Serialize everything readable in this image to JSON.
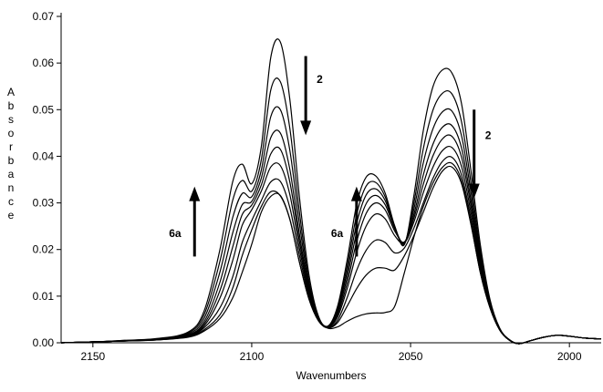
{
  "chart_data": {
    "type": "line",
    "title": "",
    "xlabel": "Wavenumbers",
    "ylabel": "Absorbance",
    "xlim": [
      2160,
      1990
    ],
    "ylim": [
      0.0,
      0.07
    ],
    "x_reversed": true,
    "grid": false,
    "legend": "none",
    "x_ticks": [
      2150,
      2100,
      2050,
      2000
    ],
    "x_tick_labels": [
      "2150",
      "2100",
      "2050",
      "2000"
    ],
    "y_ticks": [
      0.0,
      0.01,
      0.02,
      0.03,
      0.04,
      0.05,
      0.06,
      0.07
    ],
    "y_tick_labels": [
      "0.00",
      "0.01",
      "0.02",
      "0.03",
      "0.04",
      "0.05",
      "0.06",
      "0.07"
    ],
    "x": [
      2160,
      2150,
      2140,
      2130,
      2120,
      2115,
      2110,
      2106,
      2103,
      2100,
      2097,
      2094,
      2091,
      2088,
      2085,
      2082,
      2079,
      2076,
      2073,
      2070,
      2067,
      2064,
      2061,
      2058,
      2055,
      2052,
      2049,
      2046,
      2043,
      2040,
      2037,
      2034,
      2031,
      2028,
      2025,
      2022,
      2019,
      2016,
      2012,
      2008,
      2004,
      2000,
      1995,
      1990
    ],
    "series": [
      {
        "values": [
          0.0,
          0.0002,
          0.0004,
          0.0006,
          0.0012,
          0.0025,
          0.0052,
          0.0096,
          0.0151,
          0.0211,
          0.028,
          0.0314,
          0.0316,
          0.0265,
          0.0173,
          0.0094,
          0.0047,
          0.0031,
          0.0034,
          0.0046,
          0.0056,
          0.0062,
          0.0064,
          0.0065,
          0.0078,
          0.0149,
          0.0225,
          0.0292,
          0.0342,
          0.0376,
          0.0385,
          0.0349,
          0.0257,
          0.0149,
          0.0075,
          0.0028,
          0.0006,
          -0.0002,
          0.0005,
          0.0012,
          0.0016,
          0.0014,
          0.001,
          0.0008
        ]
      },
      {
        "values": [
          0.0,
          0.0002,
          0.0004,
          0.0006,
          0.0013,
          0.0028,
          0.006,
          0.0117,
          0.0187,
          0.0242,
          0.0292,
          0.0324,
          0.0315,
          0.0265,
          0.0173,
          0.0095,
          0.0048,
          0.0032,
          0.0043,
          0.0078,
          0.0116,
          0.0145,
          0.016,
          0.016,
          0.0156,
          0.0186,
          0.0229,
          0.028,
          0.0331,
          0.0368,
          0.0377,
          0.0342,
          0.0254,
          0.0149,
          0.0075,
          0.0028,
          0.0006,
          -0.0002,
          0.0005,
          0.0012,
          0.0016,
          0.0014,
          0.001,
          0.0008
        ]
      },
      {
        "values": [
          0.0,
          0.0002,
          0.0004,
          0.0006,
          0.0014,
          0.0032,
          0.0075,
          0.0141,
          0.0215,
          0.0262,
          0.0305,
          0.0345,
          0.0346,
          0.029,
          0.0188,
          0.01,
          0.0048,
          0.0032,
          0.0048,
          0.0096,
          0.0155,
          0.0198,
          0.022,
          0.0215,
          0.0193,
          0.0203,
          0.0245,
          0.03,
          0.0352,
          0.0389,
          0.0398,
          0.0361,
          0.0267,
          0.0156,
          0.0077,
          0.0028,
          0.0006,
          -0.0002,
          0.0005,
          0.0012,
          0.0016,
          0.0014,
          0.001,
          0.0008
        ]
      },
      {
        "values": [
          0.0,
          0.0002,
          0.0004,
          0.0007,
          0.0015,
          0.0036,
          0.0096,
          0.0176,
          0.0252,
          0.0285,
          0.0325,
          0.0377,
          0.038,
          0.0318,
          0.0203,
          0.0106,
          0.0049,
          0.0033,
          0.0055,
          0.0115,
          0.0193,
          0.025,
          0.0276,
          0.0266,
          0.023,
          0.0214,
          0.0258,
          0.0322,
          0.0376,
          0.0412,
          0.0419,
          0.0379,
          0.028,
          0.0163,
          0.0079,
          0.0029,
          0.0006,
          -0.0002,
          0.0005,
          0.0012,
          0.0016,
          0.0014,
          0.001,
          0.0008
        ]
      },
      {
        "values": [
          0.0,
          0.0002,
          0.0004,
          0.0007,
          0.0016,
          0.004,
          0.0112,
          0.0205,
          0.0275,
          0.0295,
          0.0338,
          0.0405,
          0.0415,
          0.0345,
          0.0218,
          0.0111,
          0.005,
          0.0033,
          0.006,
          0.0127,
          0.0216,
          0.0277,
          0.03,
          0.0285,
          0.024,
          0.0216,
          0.0266,
          0.034,
          0.04,
          0.0437,
          0.0443,
          0.0399,
          0.0294,
          0.017,
          0.0081,
          0.0029,
          0.0006,
          -0.0002,
          0.0005,
          0.0012,
          0.0016,
          0.0014,
          0.001,
          0.0008
        ]
      },
      {
        "values": [
          0.0,
          0.0002,
          0.0004,
          0.0007,
          0.0017,
          0.0045,
          0.013,
          0.0235,
          0.0296,
          0.0303,
          0.0353,
          0.044,
          0.045,
          0.0372,
          0.0233,
          0.0117,
          0.0051,
          0.0034,
          0.0065,
          0.0139,
          0.0236,
          0.0298,
          0.0316,
          0.0296,
          0.0245,
          0.0215,
          0.0274,
          0.036,
          0.0425,
          0.0462,
          0.0466,
          0.0419,
          0.0307,
          0.0177,
          0.0083,
          0.003,
          0.0007,
          -0.0002,
          0.0005,
          0.0012,
          0.0016,
          0.0014,
          0.001,
          0.0008
        ]
      },
      {
        "values": [
          0.0,
          0.0002,
          0.0004,
          0.0008,
          0.0019,
          0.0052,
          0.0152,
          0.0268,
          0.032,
          0.0313,
          0.037,
          0.0485,
          0.05,
          0.0413,
          0.0256,
          0.0125,
          0.0052,
          0.0034,
          0.0069,
          0.0151,
          0.0255,
          0.0317,
          0.033,
          0.0305,
          0.0248,
          0.0214,
          0.0285,
          0.0386,
          0.0458,
          0.0495,
          0.0497,
          0.0445,
          0.0324,
          0.0186,
          0.0086,
          0.003,
          0.0007,
          -0.0002,
          0.0005,
          0.0012,
          0.0016,
          0.0014,
          0.001,
          0.0008
        ]
      },
      {
        "values": [
          0.0,
          0.0002,
          0.0005,
          0.0008,
          0.0021,
          0.006,
          0.0175,
          0.0305,
          0.0348,
          0.0325,
          0.0392,
          0.0542,
          0.056,
          0.046,
          0.0281,
          0.0134,
          0.0054,
          0.0035,
          0.0073,
          0.0163,
          0.0274,
          0.0336,
          0.0344,
          0.0313,
          0.025,
          0.0212,
          0.0298,
          0.0416,
          0.0498,
          0.0535,
          0.0534,
          0.0475,
          0.0344,
          0.0196,
          0.0089,
          0.0031,
          0.0007,
          -0.0002,
          0.0005,
          0.0012,
          0.0016,
          0.0014,
          0.001,
          0.0008
        ]
      },
      {
        "values": [
          0.0,
          0.0002,
          0.0005,
          0.0009,
          0.0023,
          0.0068,
          0.02,
          0.0345,
          0.0383,
          0.0341,
          0.042,
          0.0612,
          0.0645,
          0.0522,
          0.0313,
          0.0147,
          0.0057,
          0.0036,
          0.0078,
          0.0176,
          0.0296,
          0.0355,
          0.0358,
          0.0321,
          0.0251,
          0.021,
          0.0313,
          0.0455,
          0.0548,
          0.0585,
          0.0579,
          0.0514,
          0.037,
          0.0208,
          0.0093,
          0.0032,
          0.0007,
          -0.0002,
          0.0005,
          0.0012,
          0.0016,
          0.0014,
          0.001,
          0.0008
        ]
      }
    ],
    "annotations": [
      {
        "text": "2",
        "x": 2083,
        "y": 0.0565,
        "arrow": "down",
        "arrow_from": 0.0615,
        "arrow_to": 0.0445
      },
      {
        "text": "6a",
        "x": 2118,
        "y": 0.0235,
        "arrow": "up",
        "arrow_from": 0.0185,
        "arrow_to": 0.0335
      },
      {
        "text": "6a",
        "x": 2067,
        "y": 0.0235,
        "arrow": "up",
        "arrow_from": 0.0185,
        "arrow_to": 0.0335
      },
      {
        "text": "2",
        "x": 2030,
        "y": 0.0445,
        "arrow": "down",
        "arrow_from": 0.05,
        "arrow_to": 0.031
      }
    ]
  }
}
